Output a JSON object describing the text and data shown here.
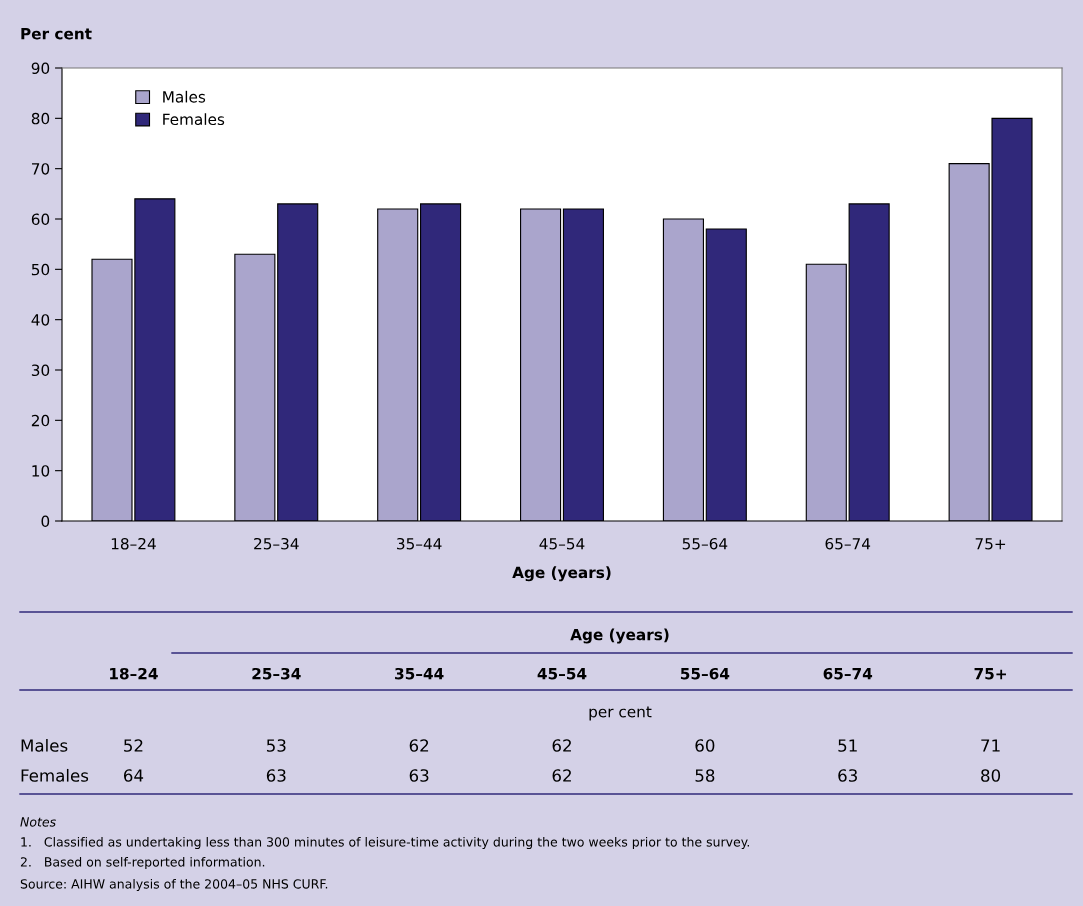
{
  "chart_data": {
    "type": "bar",
    "ylabel": "Per cent",
    "xlabel": "Age (years)",
    "categories": [
      "18–24",
      "25–34",
      "35–44",
      "45–54",
      "55–64",
      "65–74",
      "75+"
    ],
    "series": [
      {
        "name": "Males",
        "color": "#aaa5cc",
        "values": [
          52,
          53,
          62,
          62,
          60,
          51,
          71
        ]
      },
      {
        "name": "Females",
        "color": "#30287a",
        "values": [
          64,
          63,
          63,
          62,
          58,
          63,
          80
        ]
      }
    ],
    "ylim": [
      0,
      90
    ],
    "yticks": [
      0,
      10,
      20,
      30,
      40,
      50,
      60,
      70,
      80,
      90
    ],
    "grid": false,
    "legend": "top left",
    "data_labels": true,
    "annotations": [
      "Age (years)",
      "per cent",
      "Notes",
      "1.   Classified as undertaking less than 300 minutes of leisure-time activity during the two weeks prior to the survey.",
      "2.   Based on self-reported information.",
      "Source: AIHW analysis of the 2004–05 NHS CURF."
    ]
  }
}
